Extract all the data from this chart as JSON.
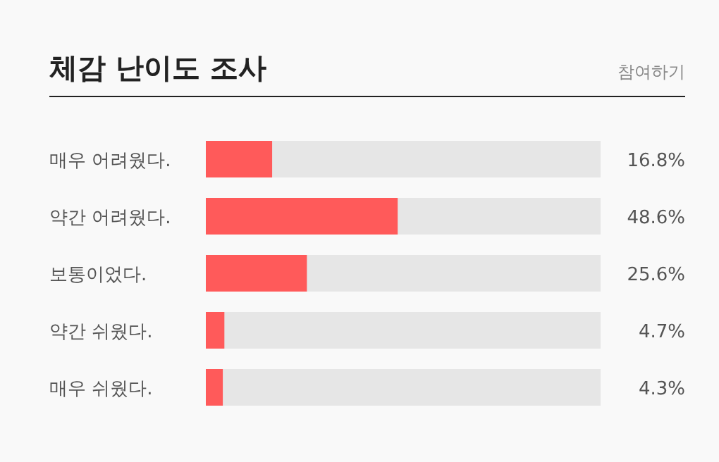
{
  "chart_data": {
    "type": "bar",
    "orientation": "horizontal",
    "title": "체감 난이도 조사",
    "annotations": [
      "참여하기"
    ],
    "categories": [
      "매우 어려웠다.",
      "약간 어려웠다.",
      "보통이었다.",
      "약간 쉬웠다.",
      "매우 쉬웠다."
    ],
    "values": [
      16.8,
      48.6,
      25.6,
      4.7,
      4.3
    ],
    "value_labels": [
      "16.8%",
      "48.6%",
      "25.6%",
      "4.7%",
      "4.3%"
    ],
    "color": "#ff5a5a",
    "xlim": [
      0,
      100
    ]
  }
}
